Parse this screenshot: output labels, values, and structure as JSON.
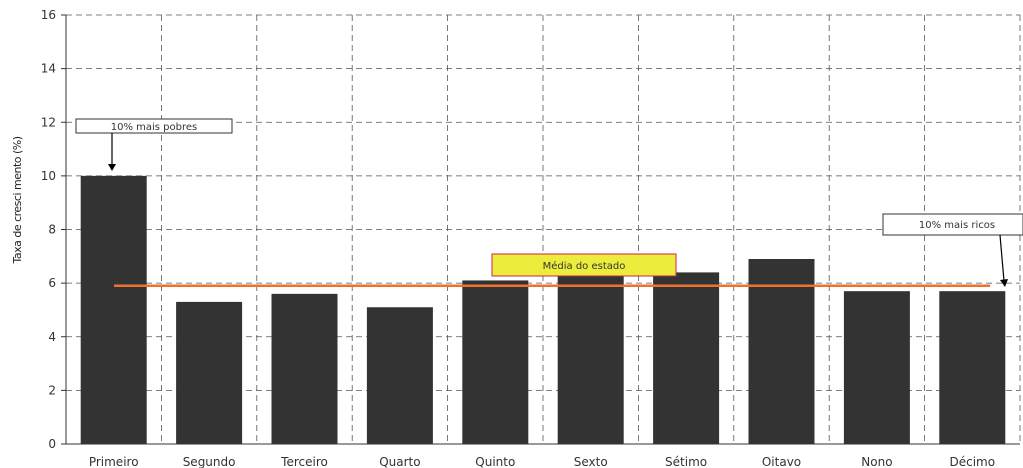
{
  "chart_data": {
    "type": "bar",
    "categories": [
      "Primeiro",
      "Segundo",
      "Terceiro",
      "Quarto",
      "Quinto",
      "Sexto",
      "Sétimo",
      "Oitavo",
      "Nono",
      "Décimo"
    ],
    "values": [
      10.0,
      5.3,
      5.6,
      5.1,
      6.1,
      6.3,
      6.4,
      6.9,
      5.7,
      5.7
    ],
    "ylabel": "Taxa de cresci mento (%)",
    "xlabel": "",
    "ylim": [
      0,
      16
    ],
    "yticks": [
      0,
      2,
      4,
      6,
      8,
      10,
      12,
      14,
      16
    ],
    "grid": true,
    "bar_color": "#333333",
    "reference_line": {
      "label": "Média do estado",
      "value": 5.9,
      "color": "#f07030"
    },
    "annotations": [
      {
        "text": "10% mais pobres",
        "target_category": "Primeiro"
      },
      {
        "text": "10% mais ricos",
        "target_category": "Décimo"
      }
    ]
  }
}
